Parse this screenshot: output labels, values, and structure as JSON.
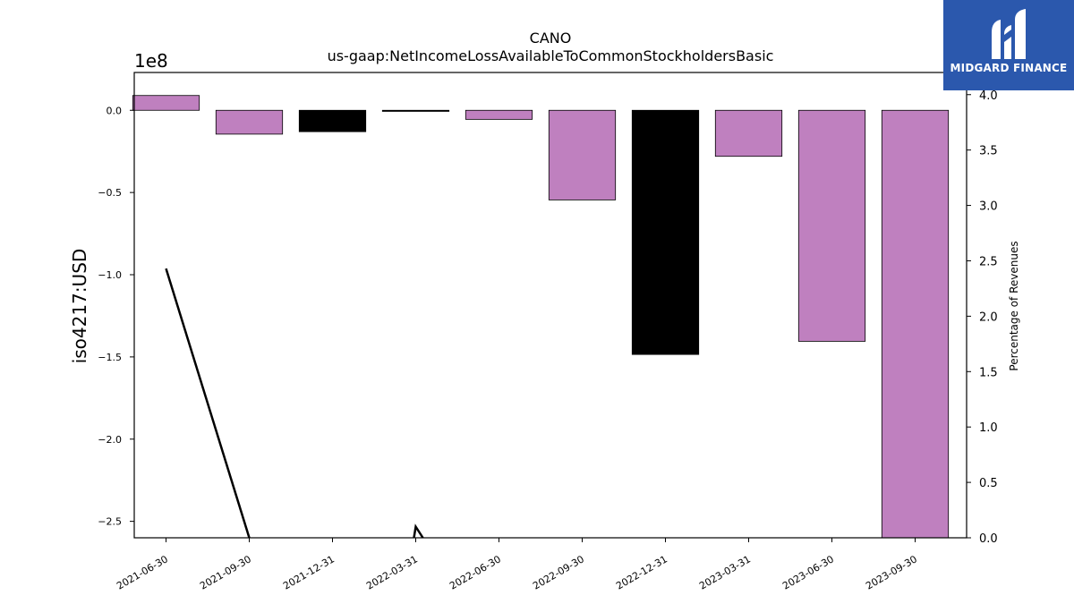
{
  "chart_data": {
    "type": "bar",
    "title": "CANO",
    "subtitle": "us-gaap:NetIncomeLossAvailableToCommonStockholdersBasic",
    "ylabel": "iso4217:USD",
    "y_multiplier_label": "1e8",
    "y2label": "Percentage of Revenues",
    "categories": [
      "2021-06-30",
      "2021-09-30",
      "2021-12-31",
      "2022-03-31",
      "2022-06-30",
      "2022-09-30",
      "2022-12-31",
      "2023-03-31",
      "2023-06-30",
      "2023-09-30"
    ],
    "values": [
      9000000,
      -14500000,
      -13000000,
      -500000,
      -5500000,
      -54500000,
      -148500000,
      -28000000,
      -140500000,
      -261000000
    ],
    "bar_colors": [
      "#bf80bf",
      "#bf80bf",
      "#000000",
      "#000000",
      "#bf80bf",
      "#bf80bf",
      "#000000",
      "#bf80bf",
      "#bf80bf",
      "#bf80bf"
    ],
    "ylim": [
      -260000000,
      23000000
    ],
    "yticks": [
      0,
      -50000000,
      -100000000,
      -150000000,
      -200000000,
      -250000000
    ],
    "ytick_labels": [
      "0.0",
      "−0.5",
      "−1.0",
      "−1.5",
      "−2.0",
      "−2.5"
    ],
    "y2lim": [
      0,
      4.2
    ],
    "y2ticks": [
      0,
      0.5,
      1.0,
      1.5,
      2.0,
      2.5,
      3.0,
      3.5,
      4.0
    ],
    "y2tick_labels": [
      "0.0",
      "0.5",
      "1.0",
      "1.5",
      "2.0",
      "2.5",
      "3.0",
      "3.5",
      "4.0"
    ],
    "line_series": {
      "axis": "secondary",
      "color": "#000000",
      "x": [
        "2021-06-30",
        "2021-09-30",
        "2022-03-31",
        "2022-06-30"
      ],
      "values": [
        2.43,
        0,
        0.1,
        0
      ]
    },
    "grid": false
  },
  "logo": {
    "text": "MIDGARD FINANCE",
    "bg_color": "#2b58ad"
  }
}
